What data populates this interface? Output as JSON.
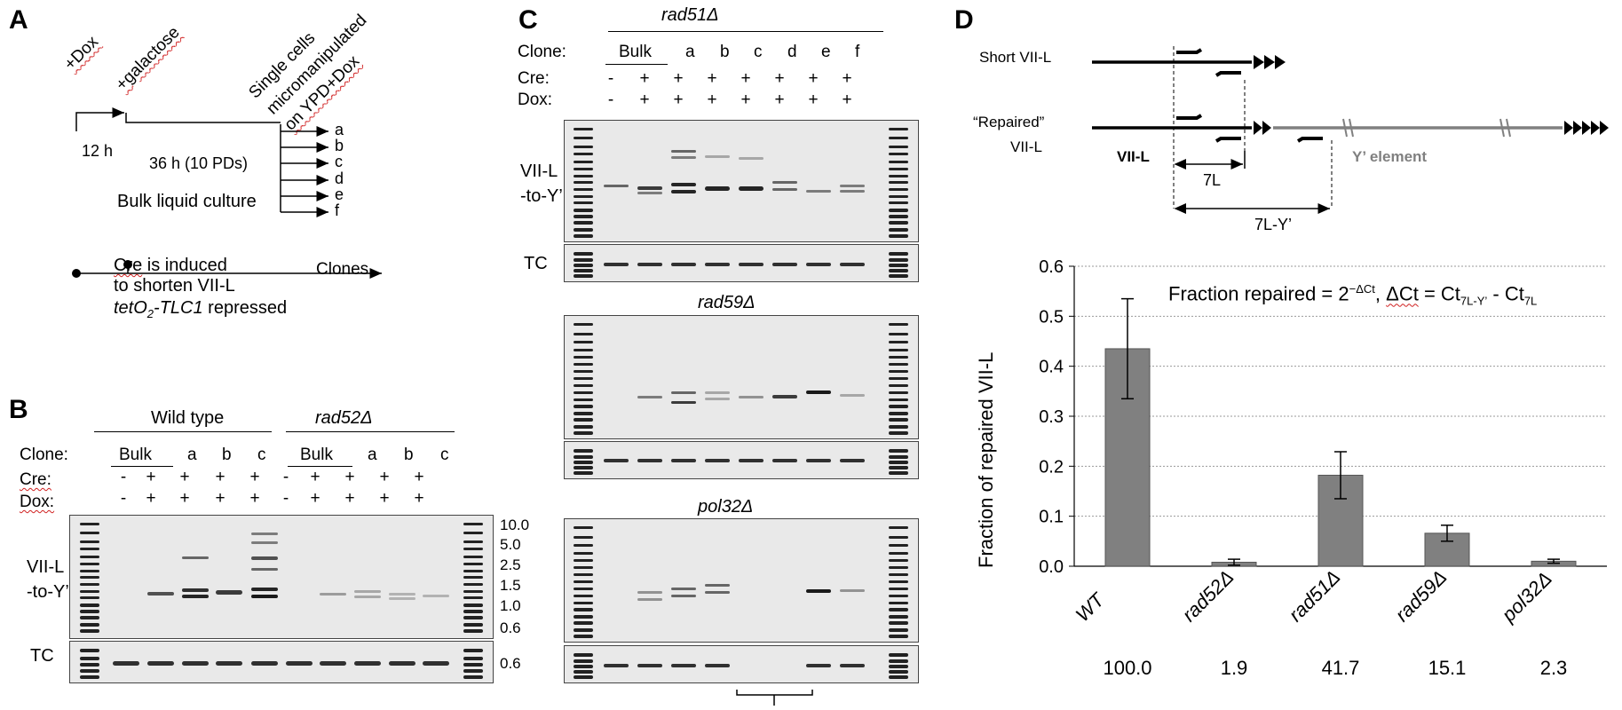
{
  "panels": {
    "a": "A",
    "b": "B",
    "c": "C",
    "d": "D"
  },
  "panel_a": {
    "dox": "+Dox",
    "galactose": "+galactose",
    "single_cells": [
      "Single cells",
      "micromanipulated",
      "on YPD+Dox"
    ],
    "clones": [
      "a",
      "b",
      "c",
      "d",
      "e",
      "f"
    ],
    "time_12h": "12 h",
    "time_36h": "36 h (10 PDs)",
    "bulk_culture": "Bulk liquid culture",
    "clones_label": "Clones",
    "cre_line1": "Cre is induced",
    "cre_line2": "to shorten VII-L",
    "tet_italic": "tetO",
    "tet_sub": "2",
    "tet_rest": "-TLC1",
    "repressed": " repressed"
  },
  "panel_b": {
    "wild_type": "Wild type",
    "rad52": "rad52Δ",
    "clone_label": "Clone:",
    "cre_label": "Cre:",
    "dox_label": "Dox:",
    "clones": [
      "Bulk",
      "a",
      "b",
      "c",
      "Bulk",
      "a",
      "b",
      "c"
    ],
    "cre": [
      "-",
      "+",
      "+",
      "+",
      "+",
      "-",
      "+",
      "+",
      "+",
      "+"
    ],
    "dox": [
      "-",
      "+",
      "+",
      "+",
      "+",
      "-",
      "+",
      "+",
      "+",
      "+"
    ],
    "vii_l": "VII-L",
    "to_y": "-to-Y’",
    "tc": "TC",
    "sizes": [
      "10.0",
      "5.0",
      "2.5",
      "1.5",
      "1.0",
      "0.6"
    ],
    "tc_size": "0.6"
  },
  "panel_c": {
    "rad51": "rad51Δ",
    "rad59": "rad59Δ",
    "pol32": "pol32Δ",
    "clone_label": "Clone:",
    "cre_label": "Cre:",
    "dox_label": "Dox:",
    "clones": [
      "Bulk",
      "a",
      "b",
      "c",
      "d",
      "e",
      "f"
    ],
    "cre": [
      "-",
      "+",
      "+",
      "+",
      "+",
      "+",
      "+",
      "+"
    ],
    "dox": [
      "-",
      "+",
      "+",
      "+",
      "+",
      "+",
      "+",
      "+"
    ],
    "vii_l": "VII-L",
    "to_y": "-to-Y’",
    "tc": "TC"
  },
  "panel_d": {
    "short_vii_l": "Short VII-L",
    "repaired": "“Repaired”",
    "repaired2": "VII-L",
    "vii_l_bold": "VII-L",
    "y_element": "Y’ element",
    "label_7l": "7L",
    "label_7l_y": "7L-Y’",
    "formula_part1": "Fraction repaired = 2",
    "formula_sup": "−ΔCt",
    "formula_part2": ", ",
    "formula_dct": "ΔCt",
    "formula_part3": " = Ct",
    "formula_sub1": "7L-Y’",
    "formula_part4": " - Ct",
    "formula_sub2": "7L",
    "percentages": [
      "100.0",
      "1.9",
      "41.7",
      "15.1",
      "2.3"
    ]
  },
  "chart_data": {
    "type": "bar",
    "categories": [
      "WT",
      "rad52Δ",
      "rad51Δ",
      "rad59Δ",
      "pol32Δ"
    ],
    "values": [
      0.435,
      0.008,
      0.182,
      0.066,
      0.01
    ],
    "errors": [
      0.1,
      0.006,
      0.047,
      0.016,
      0.004
    ],
    "ylabel": "Fraction of  repaired VII-L",
    "ylim": [
      0,
      0.6
    ],
    "yticks": [
      "0.0",
      "0.1",
      "0.2",
      "0.3",
      "0.4",
      "0.5",
      "0.6"
    ],
    "grid": true,
    "bar_color": "#808080"
  },
  "colors": {
    "bar": "#808080",
    "gel_bg": "#e9e9e9",
    "band": "#111111",
    "squiggle": "#d02020"
  }
}
